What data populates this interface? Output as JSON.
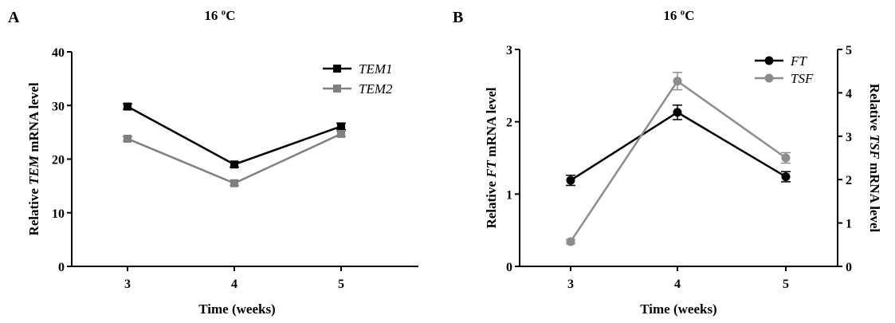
{
  "panel_a": {
    "letter": "A",
    "title": "16 ºC"
  },
  "panel_b": {
    "letter": "B",
    "title": "16 ºC"
  },
  "chart_data": [
    {
      "type": "line",
      "title": "16 ºC",
      "xlabel": "Time (weeks)",
      "ylabel_parts": [
        "Relative ",
        "TEM",
        " mRNA level"
      ],
      "categories": [
        "3",
        "4",
        "5"
      ],
      "ylim": [
        0,
        40
      ],
      "yticks": [
        0,
        10,
        20,
        30,
        40
      ],
      "series": [
        {
          "name": "TEM1",
          "color": "#000000",
          "marker": "square",
          "values": [
            29.8,
            19.0,
            26.1
          ],
          "errors": [
            0.5,
            0.5,
            0.6
          ]
        },
        {
          "name": "TEM2",
          "color": "#808080",
          "marker": "square",
          "values": [
            23.8,
            15.5,
            24.7
          ],
          "errors": [
            0.4,
            0.4,
            0.5
          ]
        }
      ],
      "legend": "top-right",
      "grid": false
    },
    {
      "type": "line",
      "title": "16 ºC",
      "xlabel": "Time (weeks)",
      "ylabel_parts": [
        "Relative ",
        "FT",
        " mRNA level"
      ],
      "y2label_parts": [
        "Relative ",
        "TSF",
        " mRNA level"
      ],
      "categories": [
        "3",
        "4",
        "5"
      ],
      "ylim": [
        0,
        3
      ],
      "yticks": [
        0,
        1,
        2,
        3
      ],
      "y2lim": [
        0,
        5
      ],
      "y2ticks": [
        0,
        1,
        2,
        3,
        4,
        5
      ],
      "series": [
        {
          "name": "FT",
          "axis": "left",
          "color": "#000000",
          "marker": "circle",
          "values": [
            1.19,
            2.13,
            1.24
          ],
          "errors": [
            0.07,
            0.1,
            0.07
          ]
        },
        {
          "name": "TSF",
          "axis": "right",
          "color": "#8c8c8c",
          "marker": "circle",
          "values": [
            0.57,
            4.27,
            2.5
          ],
          "errors": [
            0.05,
            0.2,
            0.12
          ]
        }
      ],
      "legend": "top-right",
      "grid": false
    }
  ]
}
